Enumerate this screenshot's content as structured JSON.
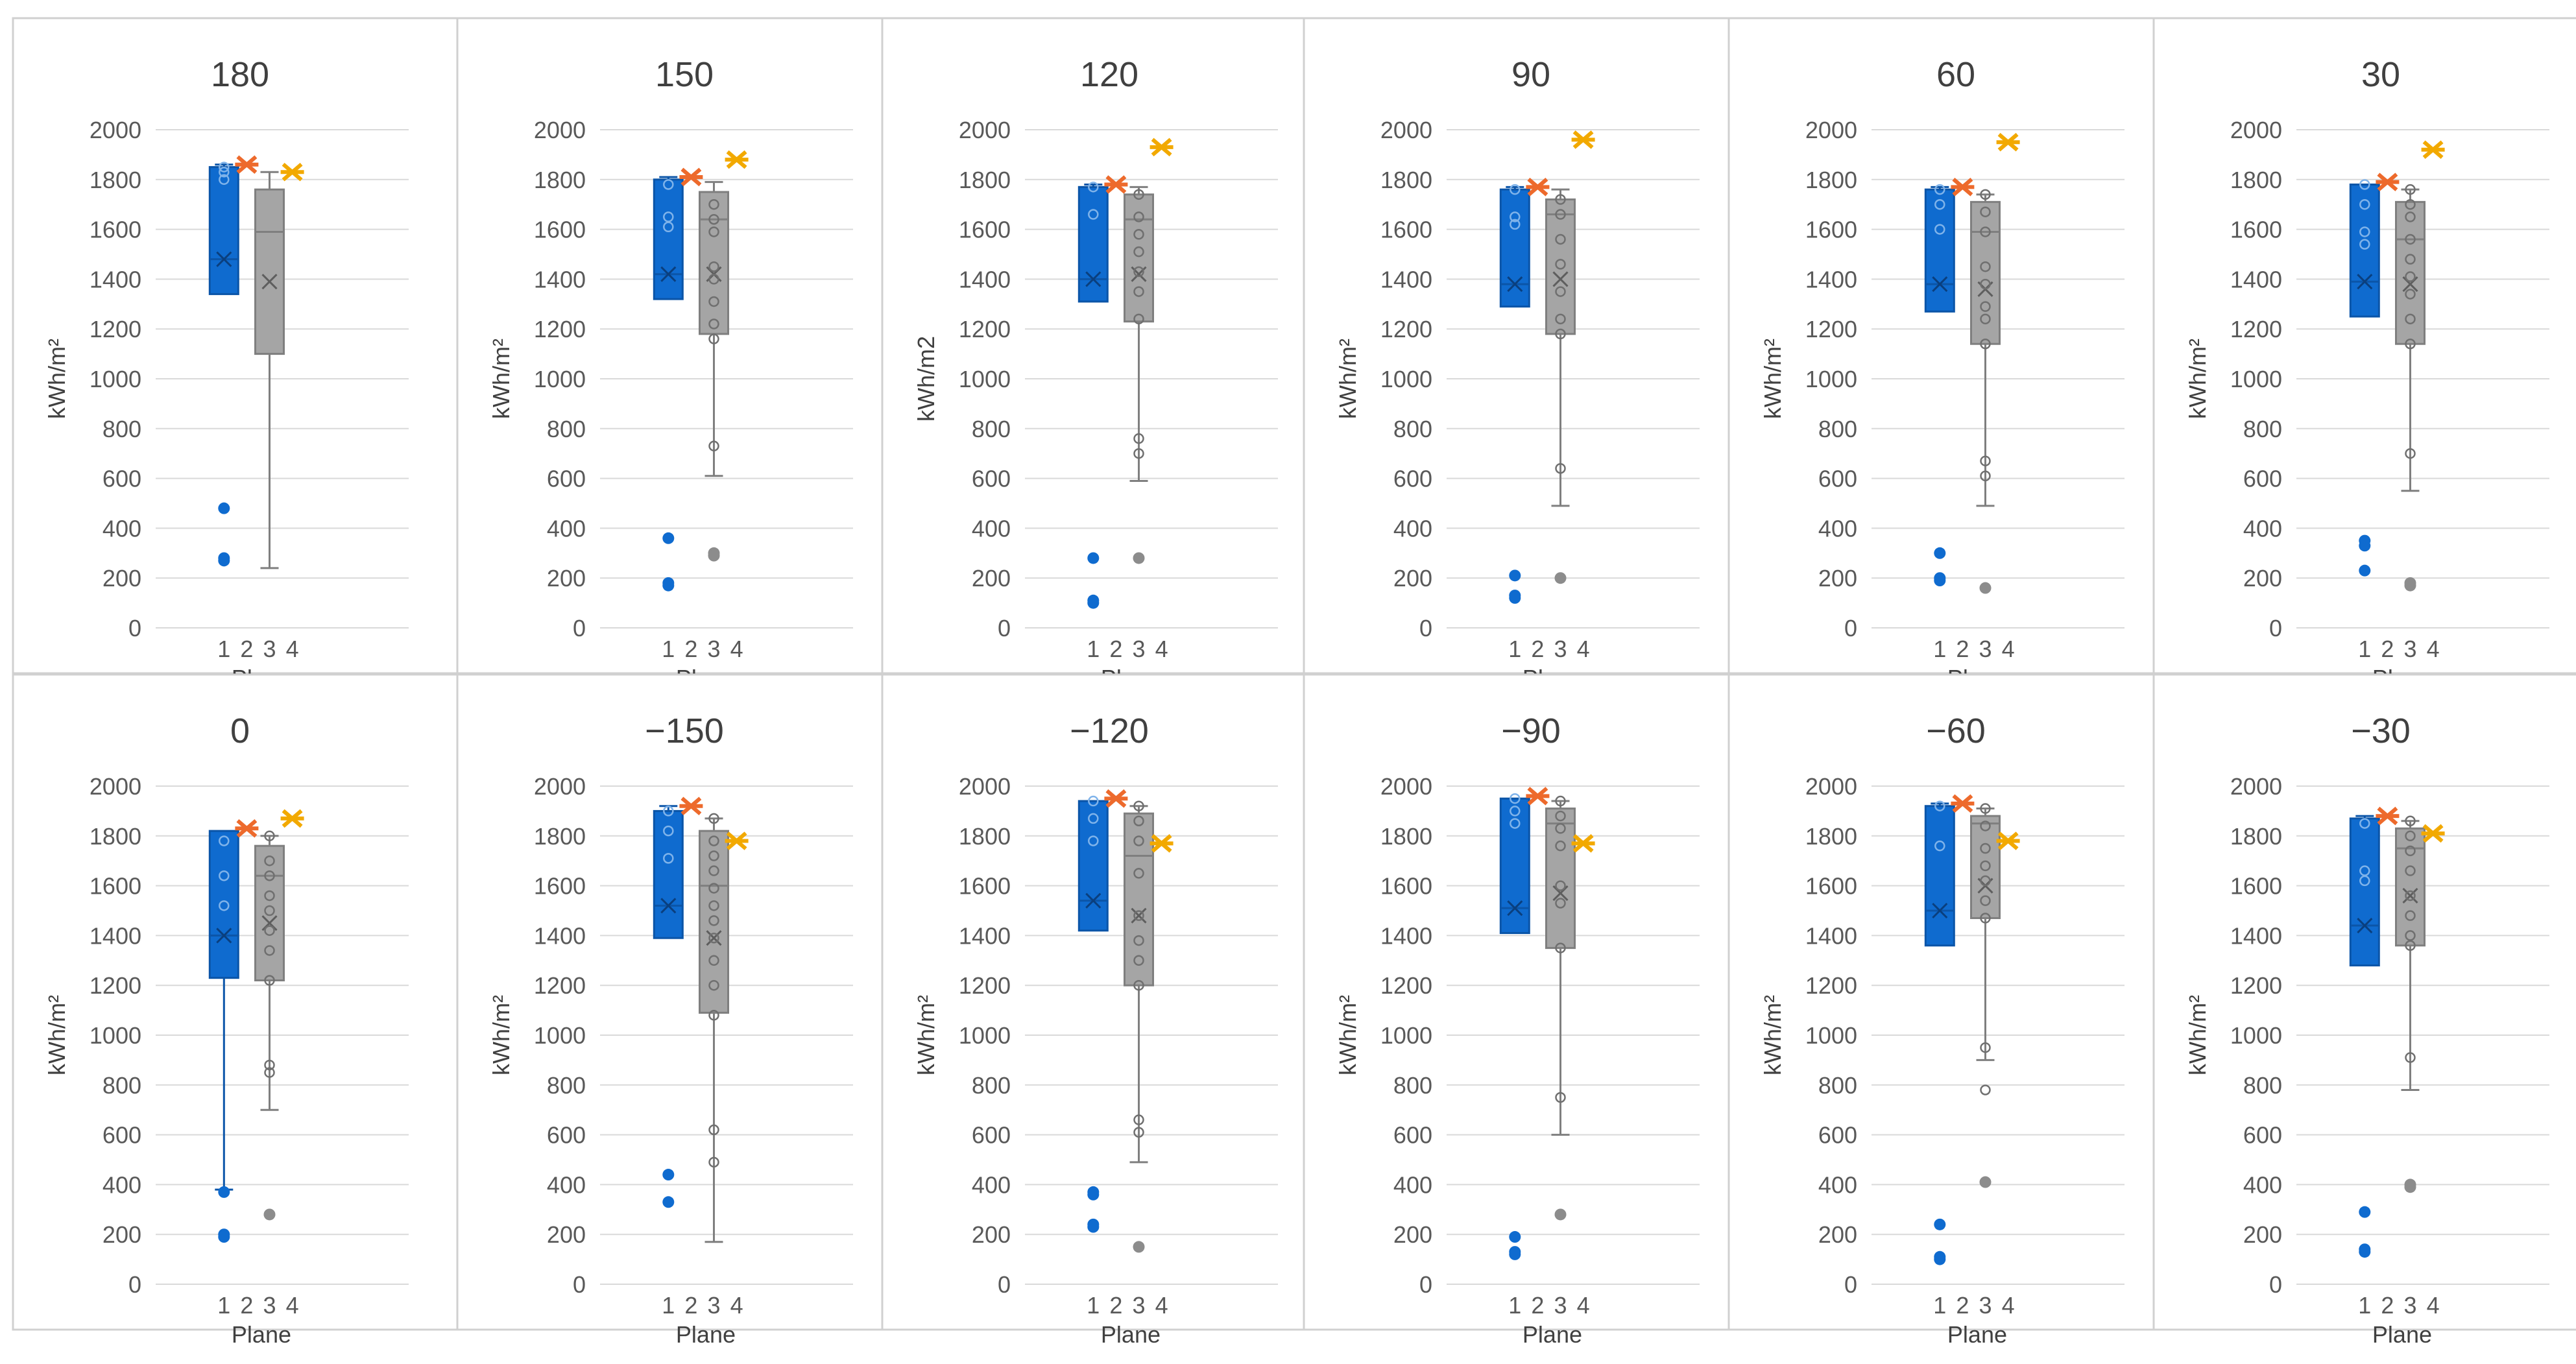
{
  "colors": {
    "plane1": "#0F6BCF",
    "plane1_dark": "#0B55A8",
    "plane2": "#ED6A2C",
    "plane3": "#A5A5A5",
    "plane3_dark": "#7F7F7F",
    "plane4": "#F2A900",
    "gridline": "#D9D9D9",
    "axis_text": "#595959",
    "panel_border": "#D0D0D0"
  },
  "chart_data": [
    {
      "type": "box",
      "title": "180",
      "xlabel": "Plane",
      "ylabel": "kWh/m²",
      "ylim": [
        0,
        2000
      ],
      "yticks": [
        0,
        200,
        400,
        600,
        800,
        1000,
        1200,
        1400,
        1600,
        1800,
        2000
      ],
      "categories": [
        "1",
        "2",
        "3",
        "4"
      ],
      "series": [
        {
          "name": "1",
          "box": {
            "min": 1340,
            "q1": 1340,
            "median": 1480,
            "q3": 1850,
            "max": 1860,
            "mean": 1480
          },
          "points": [
            480,
            280,
            270
          ],
          "markers": [
            1800,
            1830,
            1850
          ]
        },
        {
          "name": "2",
          "star": 1860
        },
        {
          "name": "3",
          "box": {
            "min": 240,
            "q1": 1100,
            "median": 1590,
            "q3": 1760,
            "max": 1830,
            "mean": 1390
          },
          "points": []
        },
        {
          "name": "4",
          "star": 1830
        }
      ]
    },
    {
      "type": "box",
      "title": "150",
      "xlabel": "Plane",
      "ylabel": "kWh/m²",
      "ylim": [
        0,
        2000
      ],
      "yticks": [
        0,
        200,
        400,
        600,
        800,
        1000,
        1200,
        1400,
        1600,
        1800,
        2000
      ],
      "categories": [
        "1",
        "2",
        "3",
        "4"
      ],
      "series": [
        {
          "name": "1",
          "box": {
            "min": 1320,
            "q1": 1320,
            "median": 1420,
            "q3": 1800,
            "max": 1810,
            "mean": 1420
          },
          "points": [
            360,
            180,
            170
          ],
          "markers": [
            1650,
            1610,
            1780
          ]
        },
        {
          "name": "2",
          "star": 1810
        },
        {
          "name": "3",
          "box": {
            "min": 610,
            "q1": 1180,
            "median": 1640,
            "q3": 1750,
            "max": 1790,
            "mean": 1420
          },
          "points": [
            300,
            290
          ],
          "markers": [
            1700,
            1640,
            1590,
            1450,
            1400,
            1310,
            1220,
            1160,
            730
          ]
        },
        {
          "name": "4",
          "star": 1880
        }
      ]
    },
    {
      "type": "box",
      "title": "120",
      "xlabel": "Plane",
      "ylabel": "kWh/m2",
      "ylim": [
        0,
        2000
      ],
      "yticks": [
        0,
        200,
        400,
        600,
        800,
        1000,
        1200,
        1400,
        1600,
        1800,
        2000
      ],
      "categories": [
        "1",
        "2",
        "3",
        "4"
      ],
      "series": [
        {
          "name": "1",
          "box": {
            "min": 1310,
            "q1": 1310,
            "median": 1400,
            "q3": 1770,
            "max": 1780,
            "mean": 1400
          },
          "points": [
            280,
            110,
            100
          ],
          "markers": [
            1660,
            1770
          ]
        },
        {
          "name": "2",
          "star": 1780
        },
        {
          "name": "3",
          "box": {
            "min": 590,
            "q1": 1230,
            "median": 1640,
            "q3": 1740,
            "max": 1770,
            "mean": 1420
          },
          "points": [
            280
          ],
          "markers": [
            1740,
            1650,
            1580,
            1510,
            1430,
            1350,
            1240,
            760,
            700
          ]
        },
        {
          "name": "4",
          "star": 1930
        }
      ]
    },
    {
      "type": "box",
      "title": "90",
      "xlabel": "Plane",
      "ylabel": "kWh/m²",
      "ylim": [
        0,
        2000
      ],
      "yticks": [
        0,
        200,
        400,
        600,
        800,
        1000,
        1200,
        1400,
        1600,
        1800,
        2000
      ],
      "categories": [
        "1",
        "2",
        "3",
        "4"
      ],
      "series": [
        {
          "name": "1",
          "box": {
            "min": 1290,
            "q1": 1290,
            "median": 1380,
            "q3": 1760,
            "max": 1770,
            "mean": 1380
          },
          "points": [
            210,
            130,
            120
          ],
          "markers": [
            1650,
            1620,
            1760
          ]
        },
        {
          "name": "2",
          "star": 1770
        },
        {
          "name": "3",
          "box": {
            "min": 490,
            "q1": 1180,
            "median": 1660,
            "q3": 1720,
            "max": 1760,
            "mean": 1400
          },
          "points": [
            200
          ],
          "markers": [
            1720,
            1660,
            1560,
            1460,
            1350,
            1240,
            1180,
            640
          ]
        },
        {
          "name": "4",
          "star": 1960
        }
      ]
    },
    {
      "type": "box",
      "title": "60",
      "xlabel": "Plane",
      "ylabel": "kWh/m²",
      "ylim": [
        0,
        2000
      ],
      "yticks": [
        0,
        200,
        400,
        600,
        800,
        1000,
        1200,
        1400,
        1600,
        1800,
        2000
      ],
      "categories": [
        "1",
        "2",
        "3",
        "4"
      ],
      "series": [
        {
          "name": "1",
          "box": {
            "min": 1270,
            "q1": 1270,
            "median": 1380,
            "q3": 1760,
            "max": 1770,
            "mean": 1380
          },
          "points": [
            300,
            200,
            190
          ],
          "markers": [
            1700,
            1600,
            1760
          ]
        },
        {
          "name": "2",
          "star": 1770
        },
        {
          "name": "3",
          "box": {
            "min": 490,
            "q1": 1140,
            "median": 1590,
            "q3": 1710,
            "max": 1740,
            "mean": 1360
          },
          "points": [
            160
          ],
          "markers": [
            1740,
            1670,
            1590,
            1450,
            1380,
            1290,
            1240,
            1140,
            670,
            610
          ]
        },
        {
          "name": "4",
          "star": 1950
        }
      ]
    },
    {
      "type": "box",
      "title": "30",
      "xlabel": "Plane",
      "ylabel": "kWh/m²",
      "ylim": [
        0,
        2000
      ],
      "yticks": [
        0,
        200,
        400,
        600,
        800,
        1000,
        1200,
        1400,
        1600,
        1800,
        2000
      ],
      "categories": [
        "1",
        "2",
        "3",
        "4"
      ],
      "series": [
        {
          "name": "1",
          "box": {
            "min": 1250,
            "q1": 1250,
            "median": 1390,
            "q3": 1780,
            "max": 1780,
            "mean": 1390
          },
          "points": [
            350,
            330,
            230
          ],
          "markers": [
            1700,
            1590,
            1540,
            1780
          ]
        },
        {
          "name": "2",
          "star": 1790
        },
        {
          "name": "3",
          "box": {
            "min": 550,
            "q1": 1140,
            "median": 1560,
            "q3": 1710,
            "max": 1760,
            "mean": 1380
          },
          "points": [
            180,
            170
          ],
          "markers": [
            1760,
            1700,
            1650,
            1560,
            1480,
            1410,
            1340,
            1240,
            1140,
            700
          ]
        },
        {
          "name": "4",
          "star": 1920
        }
      ]
    },
    {
      "type": "box",
      "title": "0",
      "xlabel": "Plane",
      "ylabel": "kWh/m²",
      "ylim": [
        0,
        2000
      ],
      "yticks": [
        0,
        200,
        400,
        600,
        800,
        1000,
        1200,
        1400,
        1600,
        1800,
        2000
      ],
      "categories": [
        "1",
        "2",
        "3",
        "4"
      ],
      "series": [
        {
          "name": "1",
          "box": {
            "min": 380,
            "q1": 1230,
            "median": 1400,
            "q3": 1820,
            "max": 1820,
            "mean": 1400
          },
          "points": [
            370,
            200,
            190
          ],
          "markers": [
            1640,
            1520,
            1780
          ]
        },
        {
          "name": "2",
          "star": 1830
        },
        {
          "name": "3",
          "box": {
            "min": 700,
            "q1": 1220,
            "median": 1640,
            "q3": 1760,
            "max": 1800,
            "mean": 1450
          },
          "points": [
            280
          ],
          "markers": [
            1800,
            1700,
            1640,
            1560,
            1500,
            1420,
            1340,
            1220,
            880,
            850
          ]
        },
        {
          "name": "4",
          "star": 1870
        }
      ]
    },
    {
      "type": "box",
      "title": "−150",
      "xlabel": "Plane",
      "ylabel": "kWh/m²",
      "ylim": [
        0,
        2000
      ],
      "yticks": [
        0,
        200,
        400,
        600,
        800,
        1000,
        1200,
        1400,
        1600,
        1800,
        2000
      ],
      "categories": [
        "1",
        "2",
        "3",
        "4"
      ],
      "series": [
        {
          "name": "1",
          "box": {
            "min": 1390,
            "q1": 1390,
            "median": 1520,
            "q3": 1900,
            "max": 1920,
            "mean": 1520
          },
          "points": [
            440,
            330
          ],
          "markers": [
            1820,
            1710,
            1900
          ]
        },
        {
          "name": "2",
          "star": 1920
        },
        {
          "name": "3",
          "box": {
            "min": 170,
            "q1": 1090,
            "median": 1600,
            "q3": 1820,
            "max": 1870,
            "mean": 1390
          },
          "points": [],
          "markers": [
            1870,
            1780,
            1720,
            1660,
            1590,
            1520,
            1460,
            1390,
            1300,
            1200,
            1080,
            620,
            490
          ]
        },
        {
          "name": "4",
          "star": 1780
        }
      ]
    },
    {
      "type": "box",
      "title": "−120",
      "xlabel": "Plane",
      "ylabel": "kWh/m²",
      "ylim": [
        0,
        2000
      ],
      "yticks": [
        0,
        200,
        400,
        600,
        800,
        1000,
        1200,
        1400,
        1600,
        1800,
        2000
      ],
      "categories": [
        "1",
        "2",
        "3",
        "4"
      ],
      "series": [
        {
          "name": "1",
          "box": {
            "min": 1420,
            "q1": 1420,
            "median": 1540,
            "q3": 1940,
            "max": 1940,
            "mean": 1540
          },
          "points": [
            370,
            360,
            240,
            230
          ],
          "markers": [
            1870,
            1780,
            1940
          ]
        },
        {
          "name": "2",
          "star": 1950
        },
        {
          "name": "3",
          "box": {
            "min": 490,
            "q1": 1200,
            "median": 1720,
            "q3": 1890,
            "max": 1920,
            "mean": 1480
          },
          "points": [
            150
          ],
          "markers": [
            1920,
            1860,
            1780,
            1650,
            1480,
            1380,
            1300,
            1200,
            660,
            610
          ]
        },
        {
          "name": "4",
          "star": 1770
        }
      ]
    },
    {
      "type": "box",
      "title": "−90",
      "xlabel": "Plane",
      "ylabel": "kWh/m²",
      "ylim": [
        0,
        2000
      ],
      "yticks": [
        0,
        200,
        400,
        600,
        800,
        1000,
        1200,
        1400,
        1600,
        1800,
        2000
      ],
      "categories": [
        "1",
        "2",
        "3",
        "4"
      ],
      "series": [
        {
          "name": "1",
          "box": {
            "min": 1410,
            "q1": 1410,
            "median": 1510,
            "q3": 1950,
            "max": 1950,
            "mean": 1510
          },
          "points": [
            190,
            130,
            120
          ],
          "markers": [
            1900,
            1850,
            1950
          ]
        },
        {
          "name": "2",
          "star": 1960
        },
        {
          "name": "3",
          "box": {
            "min": 600,
            "q1": 1350,
            "median": 1850,
            "q3": 1910,
            "max": 1940,
            "mean": 1570
          },
          "points": [
            280
          ],
          "markers": [
            1940,
            1880,
            1830,
            1760,
            1600,
            1530,
            1350,
            750
          ]
        },
        {
          "name": "4",
          "star": 1770
        }
      ]
    },
    {
      "type": "box",
      "title": "−60",
      "xlabel": "Plane",
      "ylabel": "kWh/m²",
      "ylim": [
        0,
        2000
      ],
      "yticks": [
        0,
        200,
        400,
        600,
        800,
        1000,
        1200,
        1400,
        1600,
        1800,
        2000
      ],
      "categories": [
        "1",
        "2",
        "3",
        "4"
      ],
      "series": [
        {
          "name": "1",
          "box": {
            "min": 1360,
            "q1": 1360,
            "median": 1500,
            "q3": 1920,
            "max": 1930,
            "mean": 1500
          },
          "points": [
            240,
            110,
            100
          ],
          "markers": [
            1760,
            1920
          ]
        },
        {
          "name": "2",
          "star": 1930
        },
        {
          "name": "3",
          "box": {
            "min": 900,
            "q1": 1470,
            "median": 1850,
            "q3": 1880,
            "max": 1910,
            "mean": 1600
          },
          "points": [
            410
          ],
          "markers": [
            1910,
            1840,
            1750,
            1680,
            1620,
            1540,
            1470,
            950,
            780
          ]
        },
        {
          "name": "4",
          "star": 1780
        }
      ]
    },
    {
      "type": "box",
      "title": "−30",
      "xlabel": "Plane",
      "ylabel": "kWh/m²",
      "ylim": [
        0,
        2000
      ],
      "yticks": [
        0,
        200,
        400,
        600,
        800,
        1000,
        1200,
        1400,
        1600,
        1800,
        2000
      ],
      "categories": [
        "1",
        "2",
        "3",
        "4"
      ],
      "series": [
        {
          "name": "1",
          "box": {
            "min": 1280,
            "q1": 1280,
            "median": 1440,
            "q3": 1870,
            "max": 1880,
            "mean": 1440
          },
          "points": [
            290,
            140,
            130
          ],
          "markers": [
            1660,
            1620,
            1850
          ]
        },
        {
          "name": "2",
          "star": 1880
        },
        {
          "name": "3",
          "box": {
            "min": 780,
            "q1": 1360,
            "median": 1750,
            "q3": 1830,
            "max": 1860,
            "mean": 1560
          },
          "points": [
            400,
            390
          ],
          "markers": [
            1860,
            1800,
            1740,
            1660,
            1560,
            1480,
            1400,
            1360,
            910
          ]
        },
        {
          "name": "4",
          "star": 1810
        }
      ]
    }
  ]
}
